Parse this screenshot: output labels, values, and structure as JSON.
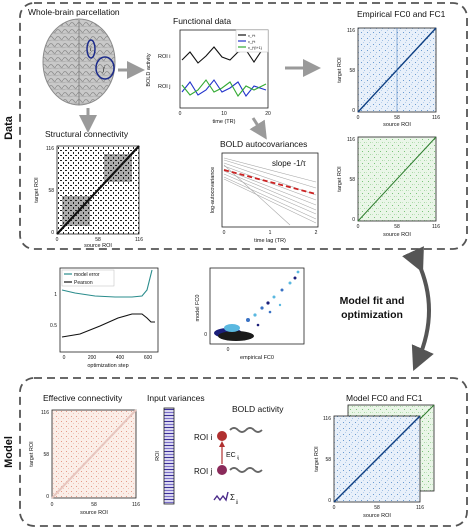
{
  "sections": {
    "data": "Data",
    "model": "Model",
    "fit": [
      "Model fit and",
      "optimization"
    ]
  },
  "parcellation": {
    "title": "Whole-brain parcellation",
    "roi_i": "i",
    "roi_j": "j"
  },
  "functional": {
    "title": "Functional data",
    "ylabel": "BOLD activity",
    "xlabel": "time (TR)",
    "roi_i": "ROI i",
    "roi_j": "ROI j",
    "xticks": [
      "0",
      "10",
      "20"
    ],
    "legend": [
      "x_i^t",
      "x_j^t",
      "x_j^{t+1}"
    ],
    "legend_colors": [
      "#111111",
      "#2233cc",
      "#33aa33"
    ]
  },
  "empirical_fc": {
    "title": "Empirical FC0 and FC1",
    "ylabel": "target ROI",
    "xlabel": "source ROI",
    "ticks": [
      "0",
      "58",
      "116"
    ],
    "fc0_color": "#1f5fa8",
    "fc1_color": "#3c9a3c"
  },
  "structural": {
    "title": "Structural connectivity",
    "ylabel": "target ROI",
    "xlabel": "source ROI",
    "ticks": [
      "0",
      "58",
      "116"
    ]
  },
  "autocov": {
    "title": "BOLD autocovariances",
    "ylabel": "log-autocovariance",
    "xlabel": "time lag (TR)",
    "xticks": [
      "0",
      "1",
      "2"
    ],
    "slope_label": "slope -1/τ",
    "slope_color": "#cc2222"
  },
  "optim_chart": {
    "xlabel": "optimization step",
    "xticks": [
      "0",
      "200",
      "400",
      "600"
    ],
    "yticks": [
      "1",
      "0.5"
    ],
    "legend": [
      "model error",
      "Pearson"
    ],
    "legend_colors": [
      "#2a8c8c",
      "#111111"
    ]
  },
  "scatter": {
    "xlabel": "empirical FC0",
    "ylabel": "model FC0",
    "ticks": [
      "0",
      "0"
    ]
  },
  "effective": {
    "title": "Effective connectivity",
    "ylabel": "target ROI",
    "xlabel": "source ROI",
    "ticks": [
      "0",
      "58",
      "116"
    ],
    "color": "#c0392b"
  },
  "input_var": {
    "title": "Input variances",
    "ylabel": "ROI"
  },
  "bold_model": {
    "title": "BOLD activity",
    "roi_i": "ROI i",
    "roi_j": "ROI j",
    "ec_label": "EC",
    "ec_sub": "ij",
    "sigma_label": "Σ",
    "sigma_sub": "jj"
  },
  "model_fc": {
    "title": "Model FC0 and FC1",
    "ylabel": "target ROI",
    "xlabel": "source ROI",
    "ticks": [
      "0",
      "58",
      "116"
    ]
  }
}
